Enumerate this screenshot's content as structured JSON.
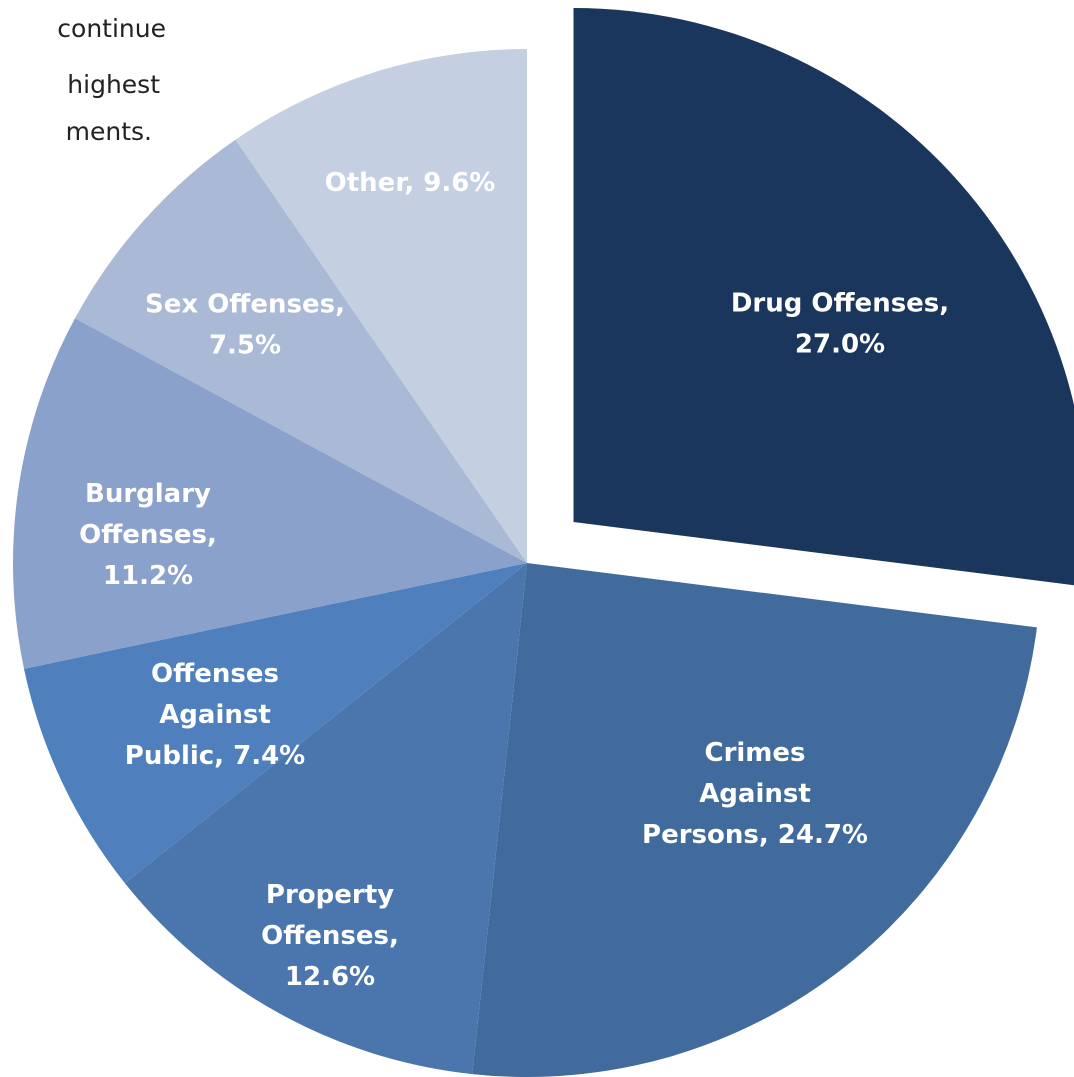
{
  "chart_data": {
    "type": "pie",
    "annotations": [
      "continue",
      "highest",
      "ments."
    ],
    "labels": [
      "Drug Offenses, 27.0%",
      "Crimes Against Persons, 24.7%",
      "Property Offenses, 12.6%",
      "Offenses Against Public, 7.4%",
      "Burglary Offenses, 11.2%",
      "Sex Offenses, 7.5%",
      "Other, 9.6%"
    ],
    "values": [
      27.0,
      24.7,
      12.6,
      7.4,
      11.2,
      7.5,
      9.6
    ],
    "colors": [
      "#1b365d",
      "#416b9d",
      "#4a76ad",
      "#4f80bd",
      "#8aa1cb",
      "#a9b9d6",
      "#c4cfe2"
    ],
    "explode": [
      true,
      false,
      false,
      false,
      false,
      false,
      false
    ]
  }
}
